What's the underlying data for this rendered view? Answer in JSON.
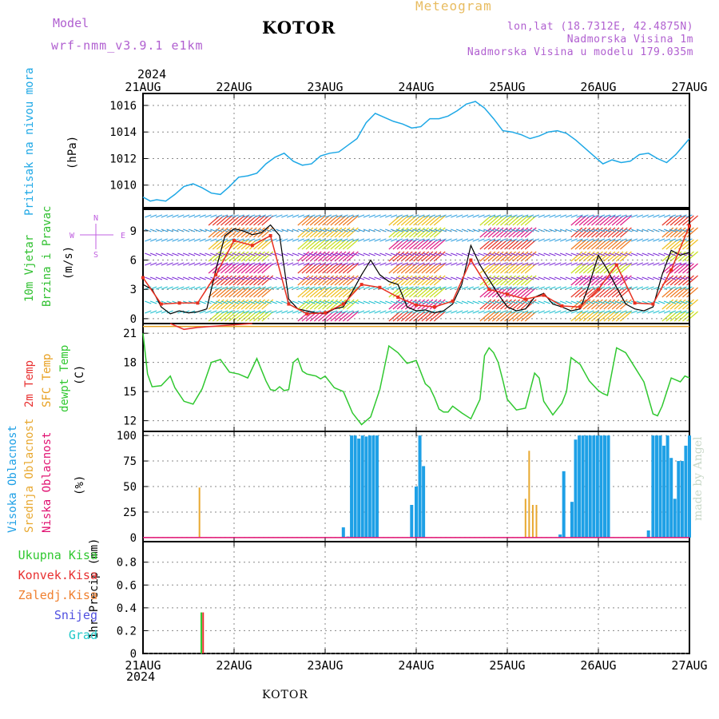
{
  "header": {
    "model_label": "Model",
    "model_name": "wrf-nmm_v3.9.1 e1km",
    "station": "KOTOR",
    "product": "Meteogram",
    "coords": "lon,lat (18.7312E, 42.4875N)",
    "elevation": "Nadmorska Visina 1m",
    "model_elevation": "Nadmorska Visina u modelu 179.035m",
    "year_top": "2024",
    "year_bottom": "2024",
    "bottom_title": "KOTOR",
    "credit": "made by Angel"
  },
  "colors": {
    "pressure": "#1ea8e6",
    "wind_speed": "#000000",
    "gust": "#e83020",
    "temp2m": "#e83030",
    "sfc_temp": "#e8a020",
    "dewpoint": "#30c830",
    "cloud_high": "#1ea0e6",
    "cloud_mid": "#e8a830",
    "cloud_low": "#e01070",
    "precip_total": "#30c830",
    "precip_conv": "#e83030",
    "freezing": "#f08030",
    "snow": "#5050e0",
    "graupel": "#20c8c8",
    "compass": "#c060e0"
  },
  "panel_labels": {
    "pressure": {
      "name": "Pritisak na nivou mora",
      "unit": "(hPa)"
    },
    "wind": {
      "name1": "10m Vjetar",
      "name2": "Brzina i Pravac",
      "unit": "(m/s)",
      "compass_n": "N",
      "compass_w": "W",
      "compass_e": "E",
      "compass_s": "S"
    },
    "temp": {
      "t2m": "2m Temp",
      "sfc": "SFC Temp",
      "dew": "dewpt Temp",
      "unit": "(C)"
    },
    "cloud": {
      "high": "Visoka Oblacnost",
      "mid": "Srednja Oblacnost",
      "low": "Niska Oblacnost",
      "unit": "(%)"
    },
    "precip": {
      "unit": "1hr Precip (mm)"
    }
  },
  "precip_legend": [
    "Ukupna Kisa",
    "Konvek.Kisa",
    "Zaledj.Kisa",
    "Snijeg",
    "Grad"
  ],
  "chart_data": [
    {
      "type": "line",
      "x_ticks": [
        "21AUG",
        "22AUG",
        "23AUG",
        "24AUG",
        "25AUG",
        "26AUG",
        "27AUG"
      ],
      "ylabel": "(hPa)",
      "ylim": [
        1008.3,
        1016.9
      ],
      "y_ticks": [
        "1010",
        "1012",
        "1014",
        "1016"
      ],
      "grid": true,
      "series": [
        {
          "name": "Pritisak na nivou mora",
          "x": [
            0,
            0.08,
            0.15,
            0.25,
            0.35,
            0.45,
            0.55,
            0.65,
            0.75,
            0.85,
            0.95,
            1.05,
            1.15,
            1.25,
            1.35,
            1.45,
            1.55,
            1.65,
            1.75,
            1.85,
            1.95,
            2.05,
            2.15,
            2.25,
            2.35,
            2.45,
            2.55,
            2.65,
            2.75,
            2.85,
            2.95,
            3.05,
            3.15,
            3.25,
            3.35,
            3.45,
            3.55,
            3.65,
            3.75,
            3.85,
            3.95,
            4.05,
            4.15,
            4.25,
            4.35,
            4.45,
            4.55,
            4.65,
            4.75,
            4.85,
            4.95,
            5.05,
            5.15,
            5.25,
            5.35,
            5.45,
            5.55,
            5.65,
            5.75,
            5.85,
            5.95,
            6.0
          ],
          "y": [
            1009.1,
            1008.8,
            1008.9,
            1008.8,
            1009.3,
            1009.9,
            1010.1,
            1009.8,
            1009.4,
            1009.3,
            1009.9,
            1010.6,
            1010.7,
            1010.9,
            1011.6,
            1012.1,
            1012.4,
            1011.8,
            1011.5,
            1011.6,
            1012.2,
            1012.4,
            1012.5,
            1013.0,
            1013.5,
            1014.7,
            1015.4,
            1015.1,
            1014.8,
            1014.6,
            1014.3,
            1014.4,
            1015.0,
            1015.0,
            1015.2,
            1015.6,
            1016.1,
            1016.3,
            1015.8,
            1015.0,
            1014.1,
            1014.0,
            1013.8,
            1013.5,
            1013.7,
            1014.0,
            1014.1,
            1013.9,
            1013.4,
            1012.8,
            1012.2,
            1011.6,
            1011.9,
            1011.7,
            1011.8,
            1012.3,
            1012.4,
            1012.0,
            1011.7,
            1012.3,
            1013.1,
            1013.5
          ]
        }
      ]
    },
    {
      "type": "line",
      "x_ticks": [
        "21AUG",
        "22AUG",
        "23AUG",
        "24AUG",
        "25AUG",
        "26AUG",
        "27AUG"
      ],
      "ylabel": "(m/s)",
      "ylim": [
        -0.5,
        11.2
      ],
      "y_ticks": [
        "0",
        "3",
        "6",
        "9"
      ],
      "grid": true,
      "wind_barbs": true,
      "series": [
        {
          "x": [
            0,
            0.1,
            0.2,
            0.3,
            0.4,
            0.5,
            0.6,
            0.7,
            0.8,
            0.9,
            1.0,
            1.1,
            1.2,
            1.3,
            1.4,
            1.5,
            1.6,
            1.7,
            1.8,
            1.9,
            2.0,
            2.1,
            2.2,
            2.3,
            2.4,
            2.5,
            2.6,
            2.7,
            2.8,
            2.9,
            3.0,
            3.1,
            3.2,
            3.3,
            3.4,
            3.5,
            3.6,
            3.7,
            3.8,
            3.9,
            4.0,
            4.1,
            4.2,
            4.3,
            4.4,
            4.5,
            4.6,
            4.7,
            4.8,
            4.9,
            5.0,
            5.1,
            5.2,
            5.3,
            5.4,
            5.5,
            5.6,
            5.7,
            5.8,
            5.9,
            6.0
          ],
          "y": [
            3.5,
            3.0,
            1.2,
            0.5,
            0.8,
            0.6,
            0.7,
            1.0,
            5.0,
            8.5,
            9.2,
            9.0,
            8.6,
            8.8,
            9.6,
            8.5,
            2.0,
            1.0,
            0.8,
            0.6,
            0.5,
            1.0,
            1.2,
            2.8,
            4.5,
            6.0,
            4.5,
            3.8,
            3.5,
            1.2,
            0.8,
            0.9,
            0.6,
            0.8,
            1.5,
            3.5,
            7.5,
            5.5,
            4.0,
            2.5,
            1.2,
            0.8,
            1.0,
            2.2,
            2.6,
            1.5,
            1.2,
            0.8,
            1.0,
            3.5,
            6.5,
            5.0,
            3.2,
            1.5,
            1.0,
            0.8,
            1.2,
            4.5,
            7.0,
            6.5,
            6.8
          ]
        },
        {
          "x": [
            0,
            0.2,
            0.4,
            0.6,
            0.8,
            1.0,
            1.2,
            1.4,
            1.6,
            1.8,
            2.0,
            2.2,
            2.4,
            2.6,
            2.8,
            3.0,
            3.2,
            3.4,
            3.6,
            3.8,
            4.0,
            4.2,
            4.4,
            4.6,
            4.8,
            5.0,
            5.2,
            5.4,
            5.6,
            5.8,
            6.0
          ],
          "y": [
            4.2,
            1.5,
            1.6,
            1.6,
            4.5,
            8.0,
            7.5,
            8.5,
            1.5,
            0.5,
            0.6,
            1.5,
            3.5,
            3.2,
            2.2,
            1.4,
            1.2,
            1.8,
            6.0,
            3.0,
            2.5,
            2.0,
            2.4,
            1.3,
            1.2,
            3.0,
            5.5,
            1.6,
            1.5,
            5.0,
            9.5
          ]
        }
      ]
    },
    {
      "type": "line",
      "x_ticks": [
        "21AUG",
        "22AUG",
        "23AUG",
        "24AUG",
        "25AUG",
        "26AUG",
        "27AUG"
      ],
      "ylabel": "(C)",
      "ylim": [
        10.9,
        22.0
      ],
      "y_ticks": [
        "12",
        "15",
        "18",
        "21"
      ],
      "grid": true,
      "series": [
        {
          "name": "SFC Temp",
          "x": [
            0,
            6
          ],
          "y": [
            21.7,
            21.7
          ]
        },
        {
          "name": "2m Temp",
          "x": [
            0.3,
            0.45,
            0.6,
            0.9,
            1.2
          ],
          "y": [
            22.0,
            21.4,
            21.6,
            21.8,
            22.0
          ]
        },
        {
          "name": "dewpt Temp",
          "x": [
            0,
            0.05,
            0.1,
            0.2,
            0.3,
            0.35,
            0.45,
            0.55,
            0.65,
            0.75,
            0.85,
            0.95,
            1.05,
            1.15,
            1.25,
            1.35,
            1.4,
            1.45,
            1.5,
            1.55,
            1.6,
            1.65,
            1.7,
            1.75,
            1.8,
            1.85,
            1.9,
            1.95,
            2.0,
            2.1,
            2.2,
            2.3,
            2.4,
            2.5,
            2.6,
            2.7,
            2.8,
            2.9,
            3.0,
            3.1,
            3.15,
            3.2,
            3.25,
            3.3,
            3.35,
            3.4,
            3.5,
            3.6,
            3.7,
            3.75,
            3.8,
            3.85,
            3.9,
            3.95,
            4.0,
            4.1,
            4.2,
            4.3,
            4.35,
            4.4,
            4.5,
            4.6,
            4.65,
            4.7,
            4.8,
            4.9,
            5.0,
            5.05,
            5.1,
            5.2,
            5.3,
            5.4,
            5.5,
            5.6,
            5.65,
            5.7,
            5.8,
            5.9,
            5.95,
            6.0
          ],
          "y": [
            21.0,
            16.8,
            15.5,
            15.6,
            16.6,
            15.4,
            14.0,
            13.7,
            15.3,
            18.0,
            18.3,
            17.0,
            16.8,
            16.4,
            18.4,
            16.1,
            15.2,
            15.1,
            15.5,
            15.1,
            15.2,
            18.0,
            18.4,
            17.1,
            16.8,
            16.7,
            16.6,
            16.3,
            16.6,
            15.4,
            15.0,
            12.8,
            11.6,
            12.4,
            15.2,
            19.7,
            19.0,
            17.9,
            18.2,
            15.8,
            15.4,
            14.4,
            13.2,
            12.9,
            12.9,
            13.5,
            12.8,
            12.2,
            14.2,
            18.7,
            19.5,
            19.0,
            18.0,
            16.2,
            14.2,
            13.1,
            13.3,
            16.9,
            16.4,
            14.0,
            12.6,
            13.8,
            15.0,
            18.5,
            17.8,
            16.1,
            15.1,
            14.8,
            14.6,
            19.5,
            19.0,
            17.5,
            16.0,
            12.7,
            12.5,
            13.5,
            16.4,
            16.0,
            16.6,
            16.4
          ]
        }
      ]
    },
    {
      "type": "bar",
      "x_ticks": [
        "21AUG",
        "22AUG",
        "23AUG",
        "24AUG",
        "25AUG",
        "26AUG",
        "27AUG"
      ],
      "ylabel": "(%)",
      "ylim": [
        -4,
        104
      ],
      "y_ticks": [
        "0",
        "25",
        "50",
        "75",
        "100"
      ],
      "grid": true,
      "series": [
        {
          "name": "Visoka Oblacnost",
          "x": [
            2.2,
            2.25,
            2.29,
            2.33,
            2.37,
            2.41,
            2.45,
            2.49,
            2.53,
            2.57,
            2.61,
            2.65,
            2.95,
            3.0,
            3.04,
            3.08,
            3.12,
            4.58,
            4.62,
            4.66,
            4.71,
            4.75,
            4.79,
            4.83,
            4.87,
            4.91,
            4.95,
            4.99,
            5.03,
            5.07,
            5.11,
            5.15,
            5.19,
            5.55,
            5.6,
            5.64,
            5.68,
            5.72,
            5.76,
            5.8,
            5.84,
            5.88,
            5.92,
            5.96,
            6.0
          ],
          "values": [
            10,
            1,
            100,
            100,
            97,
            100,
            99,
            100,
            100,
            100,
            0,
            0,
            32,
            50,
            100,
            70,
            0,
            3,
            65,
            0,
            35,
            96,
            100,
            100,
            100,
            100,
            100,
            100,
            100,
            100,
            100,
            0,
            0,
            7,
            100,
            100,
            100,
            90,
            100,
            78,
            38,
            75,
            75,
            90,
            100
          ]
        },
        {
          "name": "Srednja Oblacnost",
          "x": [
            0.62,
            4.2,
            4.24,
            4.28,
            4.32
          ],
          "values": [
            49,
            38,
            85,
            32,
            32
          ]
        },
        {
          "name": "Niska Oblacnost",
          "x": [
            0,
            6
          ],
          "values": [
            0,
            0
          ]
        }
      ]
    },
    {
      "type": "bar",
      "x_ticks": [
        "21AUG",
        "22AUG",
        "23AUG",
        "24AUG",
        "25AUG",
        "26AUG",
        "27AUG"
      ],
      "ylabel": "1hr Precip (mm)",
      "ylim": [
        0,
        0.98
      ],
      "y_ticks": [
        "0",
        "0.2",
        "0.4",
        "0.6",
        "0.8"
      ],
      "grid": true,
      "series": [
        {
          "name": "Ukupna Kisa",
          "x": [
            0.64
          ],
          "values": [
            0.36
          ]
        },
        {
          "name": "Konvek.Kisa",
          "x": [
            0.66
          ],
          "values": [
            0.36
          ]
        }
      ]
    }
  ]
}
